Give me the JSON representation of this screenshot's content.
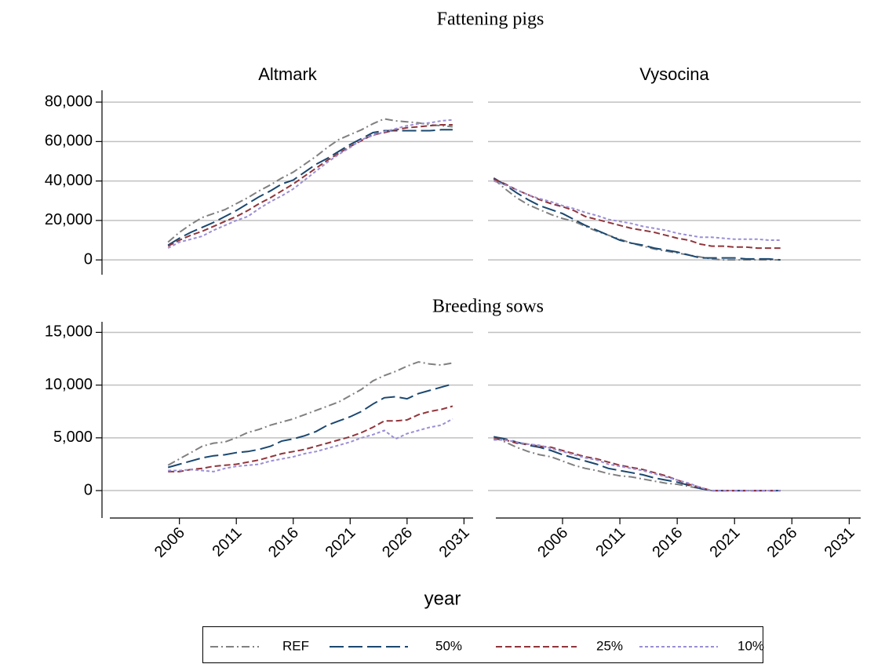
{
  "chart_data": [
    {
      "type": "line",
      "title": "Fattening pigs",
      "panel_title": "Altmark",
      "x": [
        2005,
        2006,
        2007,
        2008,
        2009,
        2010,
        2011,
        2012,
        2013,
        2014,
        2015,
        2016,
        2017,
        2018,
        2019,
        2020,
        2021,
        2022,
        2023,
        2024,
        2025,
        2026,
        2027,
        2028,
        2029,
        2030
      ],
      "xlim": [
        1999.2,
        2031.8
      ],
      "ylim": [
        -7500,
        86000
      ],
      "yticks": [
        0,
        {
          "value": 20000,
          "label": "20,000"
        },
        {
          "value": 40000,
          "label": "40,000"
        },
        {
          "value": 60000,
          "label": "60,000"
        },
        {
          "value": 80000,
          "label": "80,000"
        }
      ],
      "ytick_labels": true,
      "grid": true,
      "series": [
        {
          "name": "REF",
          "color": "#808080",
          "style": "dash_dot",
          "values": [
            9000,
            14000,
            18000,
            21500,
            23500,
            25500,
            28500,
            31500,
            35000,
            38000,
            41500,
            44500,
            48500,
            52500,
            57000,
            61000,
            63500,
            66000,
            69000,
            71500,
            70500,
            70000,
            69500,
            68500,
            68000,
            67500
          ]
        },
        {
          "name": "50%",
          "color": "#1a476f",
          "style": "long_dash",
          "values": [
            7500,
            11000,
            14000,
            16500,
            19000,
            22000,
            25000,
            28500,
            32000,
            35000,
            38500,
            40500,
            44500,
            48500,
            51500,
            55000,
            58500,
            61500,
            64500,
            65500,
            65500,
            65500,
            65500,
            65500,
            66000,
            66000
          ]
        },
        {
          "name": "25%",
          "color": "#90353b",
          "style": "dash",
          "values": [
            7000,
            10000,
            12500,
            14500,
            17000,
            19500,
            22000,
            25000,
            28500,
            31500,
            35000,
            38500,
            42500,
            46500,
            50500,
            54000,
            57500,
            60500,
            63500,
            64500,
            66000,
            67000,
            67500,
            68000,
            68500,
            68500
          ]
        },
        {
          "name": "10%",
          "color": "#9b8ed6",
          "style": "short_dash",
          "values": [
            6000,
            9000,
            10500,
            12000,
            15000,
            17500,
            20000,
            22000,
            26000,
            29500,
            32500,
            36000,
            40500,
            45000,
            49500,
            53500,
            57000,
            61000,
            63000,
            65000,
            66500,
            68000,
            69000,
            69500,
            70500,
            71000
          ]
        }
      ]
    },
    {
      "type": "line",
      "panel_title": "Vysocina",
      "x": [
        2000,
        2001,
        2002,
        2003,
        2004,
        2005,
        2006,
        2007,
        2008,
        2009,
        2010,
        2011,
        2012,
        2013,
        2014,
        2015,
        2016,
        2017,
        2018,
        2019,
        2020,
        2021,
        2022,
        2023,
        2024,
        2025
      ],
      "xlim": [
        1999.5,
        2032
      ],
      "ylim": [
        -7500,
        86000
      ],
      "yticks": [
        0,
        20000,
        40000,
        60000,
        80000
      ],
      "ytick_labels": false,
      "grid": true,
      "series": [
        {
          "name": "REF",
          "color": "#808080",
          "style": "dash_dot",
          "values": [
            41000,
            36000,
            31500,
            28000,
            25500,
            23000,
            21000,
            19500,
            17000,
            14500,
            12500,
            10500,
            8500,
            7000,
            5500,
            4500,
            3500,
            2500,
            1500,
            500,
            0,
            0,
            0,
            0,
            0,
            0
          ]
        },
        {
          "name": "50%",
          "color": "#1a476f",
          "style": "long_dash",
          "values": [
            41500,
            38000,
            34000,
            30500,
            27500,
            25500,
            23500,
            20500,
            17500,
            15000,
            12500,
            10000,
            8500,
            7500,
            6000,
            5000,
            4000,
            2500,
            1000,
            1000,
            1000,
            1000,
            500,
            500,
            500,
            0
          ]
        },
        {
          "name": "25%",
          "color": "#90353b",
          "style": "dash",
          "values": [
            41000,
            38500,
            35500,
            33000,
            30500,
            28500,
            27000,
            25000,
            22000,
            20500,
            19000,
            17500,
            16000,
            15000,
            14000,
            12500,
            11000,
            10000,
            8000,
            7000,
            7000,
            6500,
            6500,
            6000,
            6000,
            6000
          ]
        },
        {
          "name": "10%",
          "color": "#9b8ed6",
          "style": "short_dash",
          "values": [
            40000,
            38000,
            35500,
            33000,
            31000,
            29500,
            27500,
            26000,
            24000,
            22500,
            20500,
            19500,
            18500,
            17000,
            16000,
            15000,
            13500,
            12500,
            11500,
            11500,
            11000,
            10500,
            10500,
            10500,
            10000,
            10000
          ]
        }
      ]
    },
    {
      "type": "line",
      "title": "Breeding sows",
      "x": [
        2005,
        2006,
        2007,
        2008,
        2009,
        2010,
        2011,
        2012,
        2013,
        2014,
        2015,
        2016,
        2017,
        2018,
        2019,
        2020,
        2021,
        2022,
        2023,
        2024,
        2025,
        2026,
        2027,
        2028,
        2029,
        2030
      ],
      "xlim": [
        1999.2,
        2031.8
      ],
      "xticks": [
        2006,
        2011,
        2016,
        2021,
        2026,
        2031
      ],
      "ylim": [
        -2600,
        16000
      ],
      "yticks": [
        0,
        {
          "value": 5000,
          "label": "5,000"
        },
        {
          "value": 10000,
          "label": "10,000"
        },
        {
          "value": 15000,
          "label": "15,000"
        }
      ],
      "ytick_labels": true,
      "grid": true,
      "series": [
        {
          "name": "REF",
          "color": "#808080",
          "style": "dash_dot",
          "values": [
            2400,
            3000,
            3600,
            4200,
            4500,
            4600,
            5000,
            5500,
            5800,
            6200,
            6500,
            6800,
            7200,
            7600,
            8000,
            8400,
            9000,
            9600,
            10400,
            10900,
            11300,
            11800,
            12200,
            12000,
            11900,
            12100
          ]
        },
        {
          "name": "50%",
          "color": "#1a476f",
          "style": "long_dash",
          "values": [
            2200,
            2500,
            2800,
            3100,
            3300,
            3400,
            3600,
            3700,
            3900,
            4200,
            4700,
            4900,
            5200,
            5600,
            6200,
            6600,
            7000,
            7500,
            8200,
            8800,
            8900,
            8700,
            9200,
            9500,
            9800,
            10100
          ]
        },
        {
          "name": "25%",
          "color": "#90353b",
          "style": "dash",
          "values": [
            1800,
            1800,
            2000,
            2100,
            2300,
            2400,
            2500,
            2700,
            2900,
            3200,
            3500,
            3700,
            3900,
            4200,
            4500,
            4800,
            5100,
            5500,
            6000,
            6600,
            6600,
            6700,
            7200,
            7500,
            7700,
            8000
          ]
        },
        {
          "name": "10%",
          "color": "#9b8ed6",
          "style": "short_dash",
          "values": [
            1900,
            1900,
            2000,
            1900,
            1800,
            2100,
            2300,
            2400,
            2500,
            2800,
            3000,
            3200,
            3500,
            3700,
            4000,
            4300,
            4600,
            5000,
            5300,
            5700,
            4900,
            5400,
            5700,
            6000,
            6200,
            6800
          ]
        }
      ]
    },
    {
      "type": "line",
      "x": [
        2000,
        2001,
        2002,
        2003,
        2004,
        2005,
        2006,
        2007,
        2008,
        2009,
        2010,
        2011,
        2012,
        2013,
        2014,
        2015,
        2016,
        2017,
        2018,
        2019,
        2020,
        2021,
        2022,
        2023,
        2024,
        2025
      ],
      "xlim": [
        1999.5,
        2032
      ],
      "xticks": [
        2006,
        2011,
        2016,
        2021,
        2026,
        2031
      ],
      "ylim": [
        -2600,
        16000
      ],
      "yticks": [
        0,
        5000,
        10000,
        15000
      ],
      "ytick_labels": false,
      "grid": true,
      "series": [
        {
          "name": "REF",
          "color": "#808080",
          "style": "dash_dot",
          "values": [
            5100,
            4600,
            4100,
            3700,
            3400,
            3200,
            2800,
            2400,
            2100,
            1900,
            1600,
            1400,
            1300,
            1100,
            900,
            700,
            600,
            400,
            200,
            0,
            0,
            0,
            0,
            0,
            0,
            0
          ]
        },
        {
          "name": "50%",
          "color": "#1a476f",
          "style": "long_dash",
          "values": [
            5100,
            4900,
            4600,
            4300,
            4100,
            3800,
            3400,
            3100,
            2800,
            2500,
            2100,
            1900,
            1700,
            1500,
            1200,
            1000,
            800,
            500,
            200,
            0,
            0,
            0,
            0,
            0,
            0,
            0
          ]
        },
        {
          "name": "25%",
          "color": "#90353b",
          "style": "dash",
          "values": [
            4900,
            4800,
            4500,
            4400,
            4200,
            4100,
            3800,
            3500,
            3200,
            3000,
            2700,
            2400,
            2200,
            2000,
            1700,
            1400,
            1000,
            600,
            300,
            0,
            0,
            0,
            0,
            0,
            0,
            0
          ]
        },
        {
          "name": "10%",
          "color": "#9b8ed6",
          "style": "short_dash",
          "values": [
            4800,
            4800,
            4600,
            4400,
            4300,
            4000,
            3700,
            3400,
            3100,
            2900,
            2500,
            2300,
            2100,
            1900,
            1600,
            1300,
            1000,
            700,
            300,
            0,
            0,
            0,
            0,
            0,
            0,
            0
          ]
        }
      ]
    }
  ],
  "x_label": "year"
}
